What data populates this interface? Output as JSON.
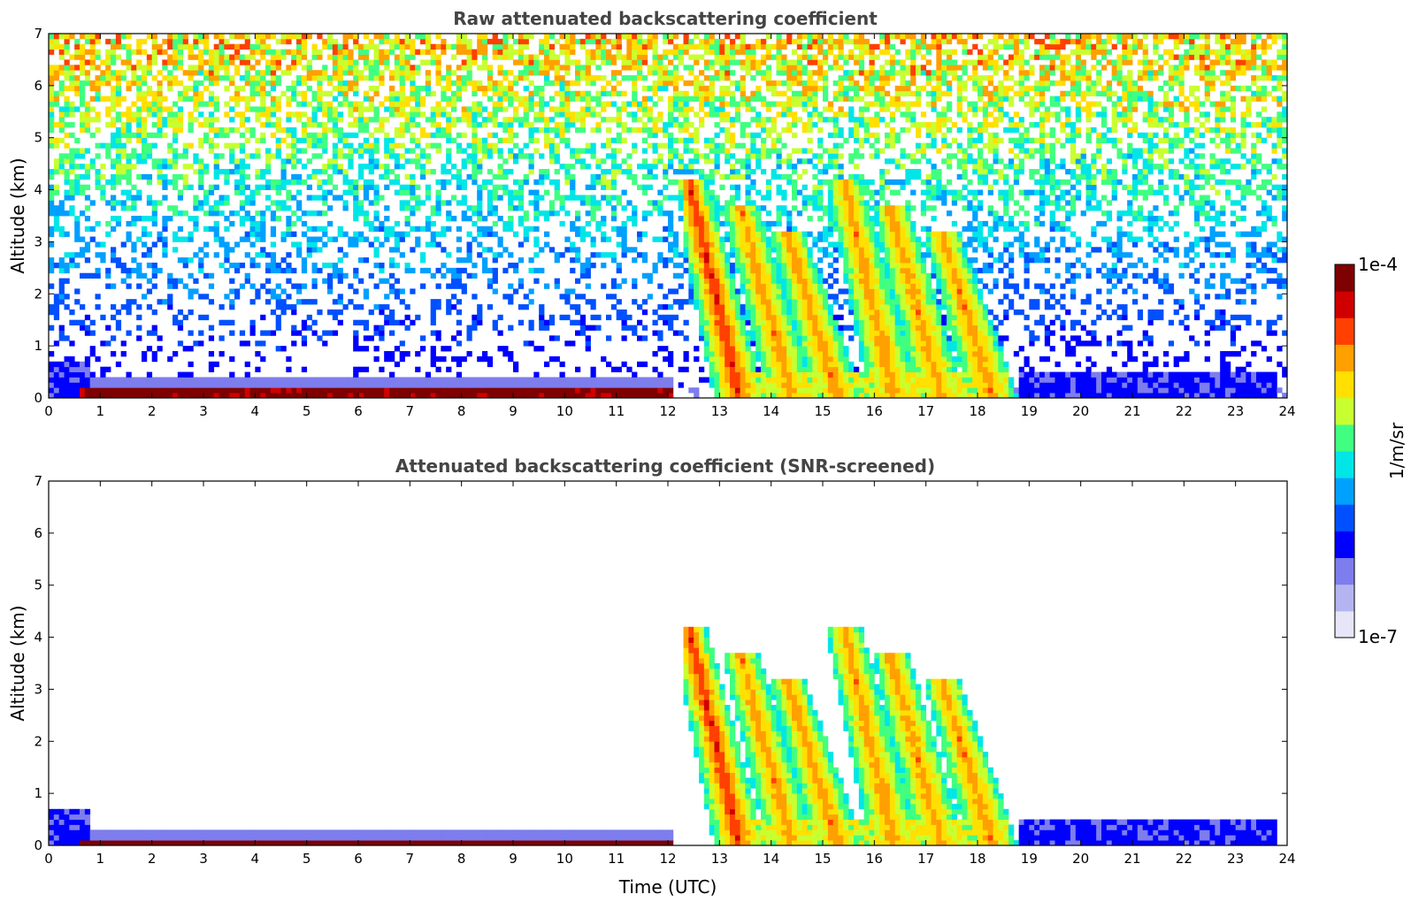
{
  "chart_data": [
    {
      "type": "heatmap",
      "title": "Raw attenuated backscattering coefficient",
      "xlabel": "",
      "ylabel": "Altitude (km)",
      "xlim": [
        0,
        24
      ],
      "ylim": [
        0,
        7
      ],
      "xticks": [
        "0",
        "1",
        "2",
        "3",
        "4",
        "5",
        "6",
        "7",
        "8",
        "9",
        "10",
        "11",
        "12",
        "13",
        "14",
        "15",
        "16",
        "17",
        "18",
        "19",
        "20",
        "21",
        "22",
        "23",
        "24"
      ],
      "yticks": [
        "0",
        "1",
        "2",
        "3",
        "4",
        "5",
        "6",
        "7"
      ],
      "features": [
        {
          "kind": "surface_layer",
          "start": 0.6,
          "end": 12.1,
          "top_km": 0.2,
          "level": 0.97
        },
        {
          "kind": "background_noise",
          "start": 0,
          "end": 24,
          "level_at_top": 0.55
        },
        {
          "kind": "precip_streaks",
          "start": 12.3,
          "end": 18.8,
          "max_km": 4.2,
          "peak_level": 0.85
        },
        {
          "kind": "boundary_layer",
          "start": 0,
          "end": 0.8,
          "top_km": 0.65,
          "level": 0.2
        },
        {
          "kind": "boundary_layer",
          "start": 18.8,
          "end": 23.8,
          "top_km": 0.5,
          "level": 0.2
        }
      ]
    },
    {
      "type": "heatmap",
      "title": "Attenuated backscattering coefficient (SNR-screened)",
      "xlabel": "Time (UTC)",
      "ylabel": "Altitude (km)",
      "xlim": [
        0,
        24
      ],
      "ylim": [
        0,
        7
      ],
      "xticks": [
        "0",
        "1",
        "2",
        "3",
        "4",
        "5",
        "6",
        "7",
        "8",
        "9",
        "10",
        "11",
        "12",
        "13",
        "14",
        "15",
        "16",
        "17",
        "18",
        "19",
        "20",
        "21",
        "22",
        "23",
        "24"
      ],
      "yticks": [
        "0",
        "1",
        "2",
        "3",
        "4",
        "5",
        "6",
        "7"
      ],
      "features": [
        {
          "kind": "surface_layer",
          "start": 0.6,
          "end": 12.1,
          "top_km": 0.15,
          "level": 1.0
        },
        {
          "kind": "precip_streaks",
          "start": 12.3,
          "end": 18.8,
          "max_km": 4.2,
          "peak_level": 0.85
        },
        {
          "kind": "boundary_layer",
          "start": 0,
          "end": 0.8,
          "top_km": 0.65,
          "level": 0.2
        },
        {
          "kind": "boundary_layer",
          "start": 18.8,
          "end": 23.8,
          "top_km": 0.5,
          "level": 0.2
        }
      ]
    }
  ],
  "colorbar": {
    "max_label": "1e-4",
    "min_label": "1e-7",
    "unit_label": "1/m/sr",
    "colors": [
      "#e6e6f8",
      "#b4b4f0",
      "#7d7ded",
      "#0000ff",
      "#0050ff",
      "#00a0ff",
      "#00e6e6",
      "#40ff80",
      "#c8ff30",
      "#ffe000",
      "#ffa000",
      "#ff4000",
      "#d00000",
      "#7f0000"
    ]
  }
}
